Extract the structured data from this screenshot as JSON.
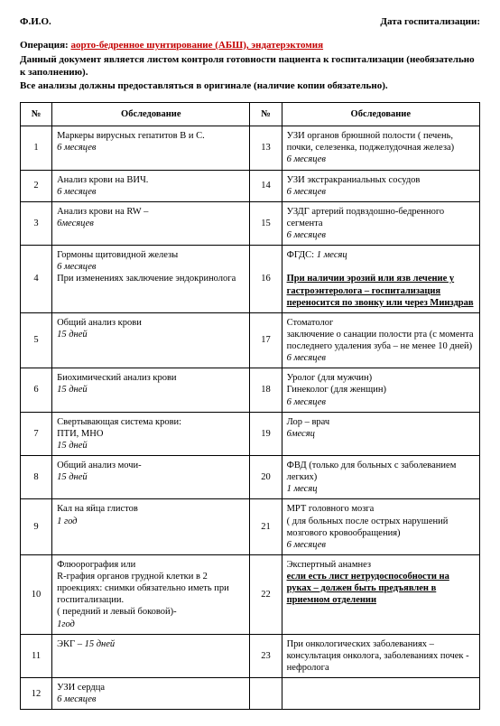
{
  "header": {
    "fio_label": "Ф.И.О.",
    "date_label": "Дата госпитализации:"
  },
  "intro": {
    "op_label": "Операция:",
    "op_value": "аорто-бедренное шунтирование (АБШ), эндатерэктомия",
    "line1": "Данный документ является листом контроля готовности пациента к госпитализации (необязательно к заполнению).",
    "line2": "Все анализы должны предоставляться в оригинале (наличие копии обязательно)."
  },
  "columns": {
    "num": "№",
    "exam": "Обследование"
  },
  "rows": [
    {
      "n1": "1",
      "c1": "Маркеры вирусных гепатитов В и С.",
      "v1": "6 месяцев",
      "n2": "13",
      "c2": "УЗИ органов брюшной полости ( печень, почки, селезенка, поджелудочная железа)",
      "v2": "6 месяцев"
    },
    {
      "n1": "2",
      "c1": "Анализ крови на ВИЧ.",
      "v1": "6 месяцев",
      "n2": "14",
      "c2": "УЗИ экстракраниальных  сосудов",
      "v2": "6 месяцев"
    },
    {
      "n1": "3",
      "c1": "Анализ крови на RW –",
      "v1": "6месяцев",
      "n2": "15",
      "c2": "УЗДГ артерий подвздошно-бедренного сегмента",
      "v2": "6 месяцев"
    },
    {
      "n1": "4",
      "c1": "Гормоны щитовидной железы",
      "v1": "6 месяцев",
      "e1": "При изменениях заключение эндокринолога",
      "n2": "16",
      "c2_pre": "ФГДС: ",
      "c2_pre_v": "1 месяц",
      "c2_ub": "При наличии эрозий или язв лечение у гастроэнтеролога – госпитализация переносится по звонку или через Минздрав"
    },
    {
      "n1": "5",
      "c1": "Общий анализ крови",
      "v1": "15 дней",
      "n2": "17",
      "c2": "Стоматолог",
      "e2": "заключение о санации полости рта (с момента последнего удаления зуба – не менее 10 дней)",
      "v2": "6  месяцев"
    },
    {
      "n1": "6",
      "c1": "Биохимический анализ крови",
      "v1": "15 дней",
      "n2": "18",
      "c2": "Уролог (для мужчин)\nГинеколог (для женщин)",
      "v2": "6 месяцев"
    },
    {
      "n1": "7",
      "c1": "Свертывающая система крови:\nПТИ, МНО",
      "v1": "15 дней",
      "n2": "19",
      "c2": "Лор – врач",
      "v2": "6месяц"
    },
    {
      "n1": "8",
      "c1": "Общий анализ мочи-",
      "v1": "15 дней",
      "n2": "20",
      "c2": "ФВД (только для больных с заболеванием легких)",
      "v2": "1 месяц"
    },
    {
      "n1": "9",
      "c1": "Кал на яйца глистов",
      "v1": "1 год",
      "n2": "21",
      "c2": "МРТ головного мозга\n( для больных после острых нарушений мозгового кровообращения)",
      "v2": "6 месяцев"
    },
    {
      "n1": "10",
      "c1": "Флюорография или\nR-графия органов грудной клетки в 2 проекциях: снимки обязательно иметь при госпитализации.\n( передний и левый боковой)-",
      "v1": "1год",
      "n2": "22",
      "c2": "Экспертный анамнез",
      "c2_ub": "если есть лист нетрудоспособности на руках – должен быть предъявлен в приемном отделении"
    },
    {
      "n1": "11",
      "c1_html": "ЭКГ – <span class=\"validity\">15 дней</span>",
      "n2": "23",
      "c2": "При онкологических заболеваниях – консультация онколога, заболеваниях почек - нефролога"
    },
    {
      "n1": "12",
      "c1": "УЗИ сердца",
      "v1": "6 месяцев",
      "n2": "",
      "c2": ""
    }
  ]
}
